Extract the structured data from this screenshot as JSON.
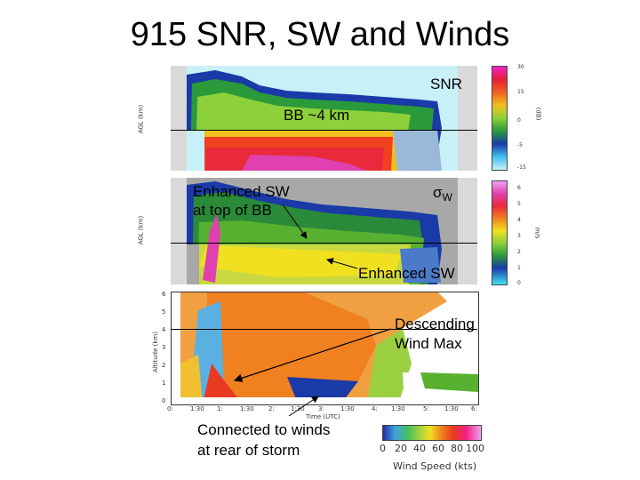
{
  "title": "915 SNR, SW and Winds",
  "panels": {
    "snr": {
      "label": "SNR",
      "annotation": "BB ~4 km",
      "ylabel": "AGL (km)",
      "cbar_ticks": [
        "30",
        "15",
        "0",
        "-5",
        "-15"
      ],
      "cbar_unit": "(dB)"
    },
    "sw": {
      "label_sigma": "σ",
      "label_sub": "W",
      "annotation_top_1": "Enhanced SW",
      "annotation_top_2": "at top of BB",
      "annotation_bottom": "Enhanced SW",
      "ylabel": "AGL (km)",
      "cbar_ticks": [
        "6",
        "5",
        "4",
        "3",
        "2",
        "1",
        "0"
      ],
      "cbar_unit": "m/s"
    },
    "wind": {
      "annotation_1": "Descending",
      "annotation_2": "Wind Max",
      "ylabel": "Altitude (km)",
      "yticks": [
        "6",
        "5",
        "4",
        "3",
        "2",
        "1",
        "0"
      ],
      "xticks": [
        "0:",
        "1:30",
        "1:",
        "1:30",
        "2:",
        "1:30",
        "3:",
        "1:30",
        "4:",
        "1:30",
        "5:",
        "1:30",
        "6:"
      ],
      "xlabel": "Time (UTC)"
    }
  },
  "bottom_annotation_1": "Connected to winds",
  "bottom_annotation_2": "at rear of storm",
  "wind_colorbar": {
    "ticks": [
      "0",
      "20",
      "40",
      "60",
      "80",
      "100"
    ],
    "label": "Wind Speed (kts)"
  }
}
